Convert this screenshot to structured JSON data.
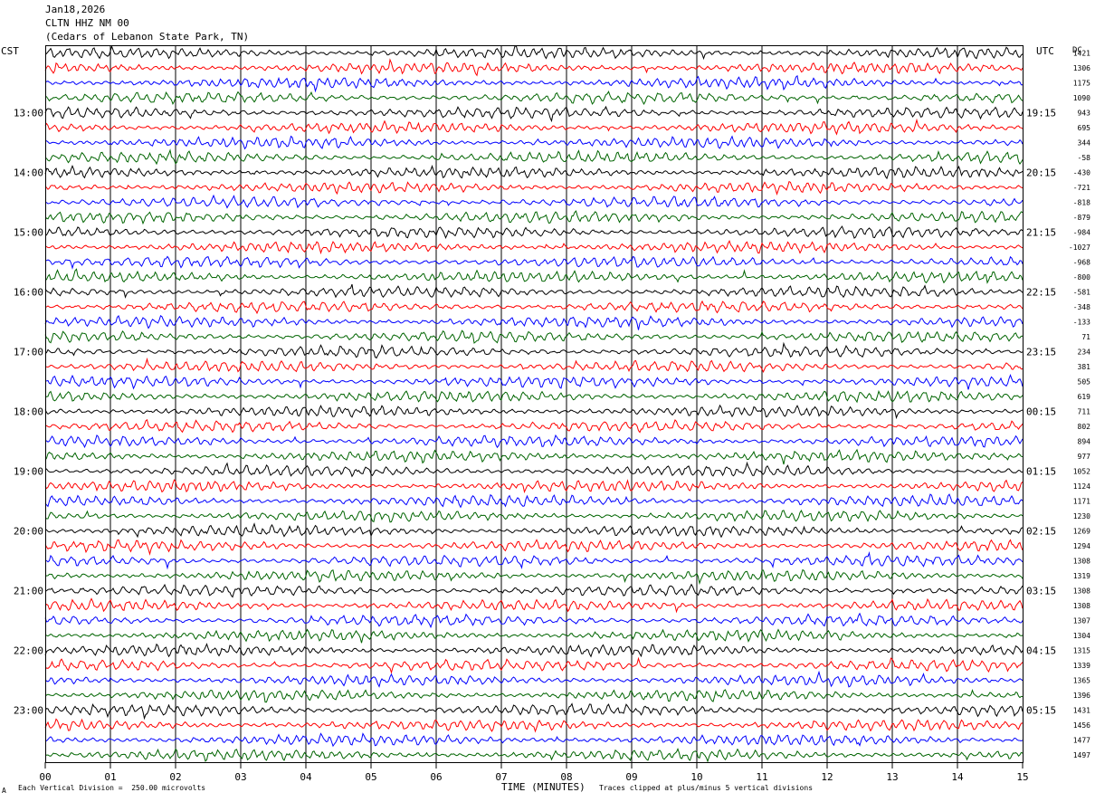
{
  "header": {
    "date": "Jan18,2026",
    "station": "CLTN HHZ NM 00",
    "location": "(Cedars of Lebanon State Park, TN)"
  },
  "labels": {
    "left_zone": "CST",
    "right_zone": "UTC",
    "dc": "DC"
  },
  "footer": {
    "division": "Each Vertical Division =  250.00 microvolts",
    "clip": "Traces clipped at plus/minus 5 vertical divisions",
    "mark": "A"
  },
  "chart_data": {
    "type": "line",
    "xlabel": "TIME (MINUTES)",
    "xlim": [
      0,
      15
    ],
    "x_ticks": [
      "00",
      "01",
      "02",
      "03",
      "04",
      "05",
      "06",
      "07",
      "08",
      "09",
      "10",
      "11",
      "12",
      "13",
      "14",
      "15"
    ],
    "trace_colors": [
      "#000000",
      "#ff0000",
      "#0000ff",
      "#006400"
    ],
    "trace_count": 48,
    "left_hour_labels": [
      "13:00",
      "14:00",
      "15:00",
      "16:00",
      "17:00",
      "18:00",
      "19:00",
      "20:00",
      "21:00",
      "22:00",
      "23:00"
    ],
    "right_hour_labels": [
      "19:15",
      "20:15",
      "21:15",
      "22:15",
      "23:15",
      "00:15",
      "01:15",
      "02:15",
      "03:15",
      "04:15",
      "05:15"
    ],
    "dc_offsets": [
      "1421",
      "1306",
      "1175",
      "1090",
      "943",
      "695",
      "344",
      "-58",
      "-430",
      "-721",
      "-818",
      "-879",
      "-984",
      "-1027",
      "-968",
      "-800",
      "-581",
      "-348",
      "-133",
      "71",
      "234",
      "381",
      "505",
      "619",
      "711",
      "802",
      "894",
      "977",
      "1052",
      "1124",
      "1171",
      "1230",
      "1269",
      "1294",
      "1308",
      "1319",
      "1308",
      "1308",
      "1307",
      "1304",
      "1315",
      "1339",
      "1365",
      "1396",
      "1431",
      "1456",
      "1477",
      "1497"
    ]
  }
}
